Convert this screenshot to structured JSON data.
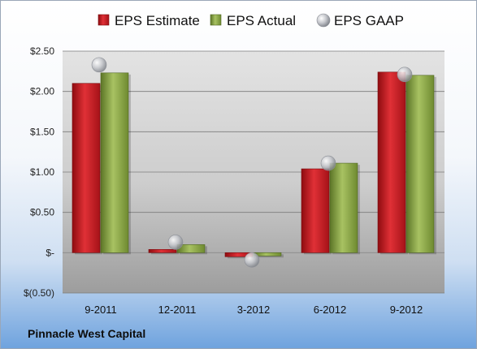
{
  "company": "Pinnacle West Capital",
  "chart_data": {
    "type": "bar",
    "categories": [
      "9-2011",
      "12-2011",
      "3-2012",
      "6-2012",
      "9-2012"
    ],
    "series": [
      {
        "name": "EPS Estimate",
        "type": "bar",
        "color": "#c0161c",
        "values": [
          2.1,
          0.04,
          -0.05,
          1.04,
          2.24
        ]
      },
      {
        "name": "EPS Actual",
        "type": "bar",
        "color": "#7f9c3c",
        "values": [
          2.23,
          0.1,
          -0.04,
          1.11,
          2.2
        ]
      },
      {
        "name": "EPS GAAP",
        "type": "marker",
        "color": "#b9bcc2",
        "values": [
          2.33,
          0.13,
          -0.09,
          1.11,
          2.21
        ]
      }
    ],
    "y_ticks": [
      {
        "value": 2.5,
        "label": "$2.50"
      },
      {
        "value": 2.0,
        "label": "$2.00"
      },
      {
        "value": 1.5,
        "label": "$1.50"
      },
      {
        "value": 1.0,
        "label": "$1.00"
      },
      {
        "value": 0.5,
        "label": "$0.50"
      },
      {
        "value": 0.0,
        "label": "$-"
      },
      {
        "value": -0.5,
        "label": "$(0.50)"
      }
    ],
    "ylim": [
      -0.5,
      2.5
    ],
    "grid": true,
    "legend_position": "top"
  }
}
